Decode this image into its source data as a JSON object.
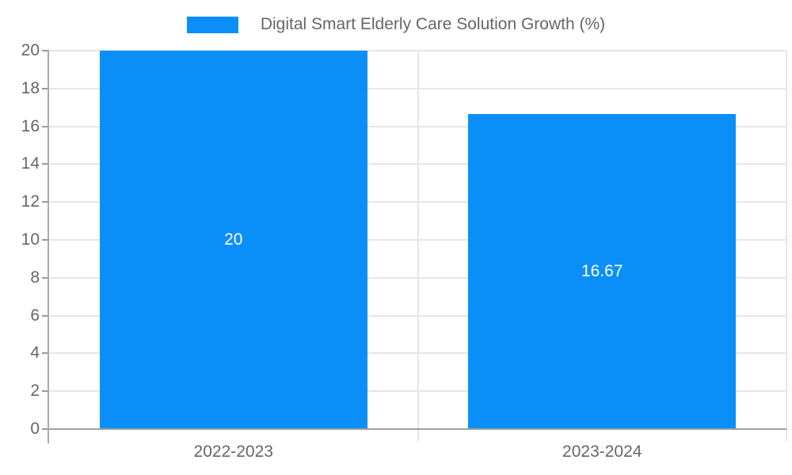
{
  "chart_data": {
    "type": "bar",
    "title": "",
    "legend": {
      "label": "Digital Smart Elderly Care Solution Growth (%)",
      "position": "top"
    },
    "categories": [
      "2022-2023",
      "2023-2024"
    ],
    "values": [
      20,
      16.67
    ],
    "value_labels": [
      "20",
      "16.67"
    ],
    "xlabel": "",
    "ylabel": "",
    "ylim": [
      0,
      20
    ],
    "ytick_step": 2,
    "ytick_labels": [
      "0",
      "2",
      "4",
      "6",
      "8",
      "10",
      "12",
      "14",
      "16",
      "18",
      "20"
    ],
    "grid": true,
    "legend_position": "top-center",
    "colors": {
      "bar": "#0A8FF8",
      "bar_value_label": "#ffffff",
      "axis_text": "#666666",
      "grid_line": "#e6e6e6",
      "axis_line": "#a0a0a0"
    }
  }
}
